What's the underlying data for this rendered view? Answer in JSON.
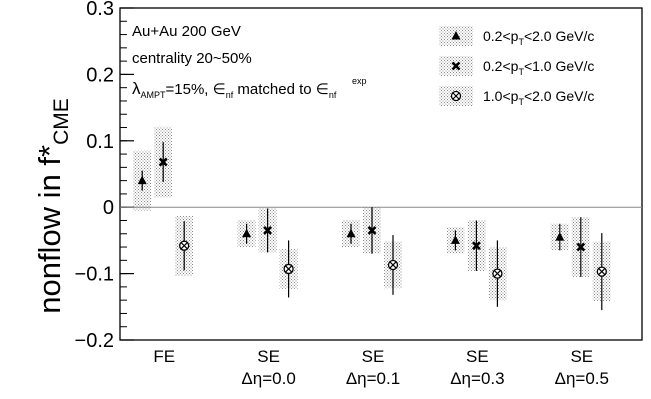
{
  "chart_data": {
    "type": "scatter",
    "ylabel_main": "nonflow in f*",
    "ylabel_sub": "CME",
    "ylim": [
      -0.2,
      0.3
    ],
    "yticks": [
      "0.3",
      "0.2",
      "0.1",
      "0",
      "−0.1",
      "−0.2"
    ],
    "ytick_values": [
      0.3,
      0.2,
      0.1,
      0,
      -0.1,
      -0.2
    ],
    "categories": [
      {
        "line1": "FE",
        "line2": ""
      },
      {
        "line1": "SE",
        "line2": "Δη=0.0"
      },
      {
        "line1": "SE",
        "line2": "Δη=0.1"
      },
      {
        "line1": "SE",
        "line2": "Δη=0.3"
      },
      {
        "line1": "SE",
        "line2": "Δη=0.5"
      }
    ],
    "annotations": {
      "line1": "Au+Au 200 GeV",
      "line2": "centrality 20~50%",
      "line3_lambda": "λ",
      "line3_lambda_sub": "AMPT",
      "line3_mid": "=15%, ∈",
      "line3_nf_sub": "nf",
      "line3_matched": " matched to ∈",
      "line3_exp_sup": "exp",
      "line3_nf_sub2": "nf"
    },
    "series": [
      {
        "name_pre": "0.2<p",
        "name_sub": "T",
        "name_post": "<2.0 GeV/c",
        "marker": "triangle",
        "values": [
          0.04,
          -0.04,
          -0.04,
          -0.05,
          -0.045
        ],
        "stat_err": [
          0.015,
          0.015,
          0.015,
          0.015,
          0.02
        ],
        "sys_err": [
          0.045,
          0.02,
          0.02,
          0.02,
          0.02
        ]
      },
      {
        "name_pre": "0.2<p",
        "name_sub": "T",
        "name_post": "<1.0 GeV/c",
        "marker": "cross",
        "values": [
          0.068,
          -0.035,
          -0.035,
          -0.058,
          -0.06
        ],
        "stat_err": [
          0.03,
          0.033,
          0.035,
          0.038,
          0.045
        ],
        "sys_err": [
          0.053,
          0.033,
          0.035,
          0.038,
          0.045
        ]
      },
      {
        "name_pre": "1.0<p",
        "name_sub": "T",
        "name_post": "<2.0 GeV/c",
        "marker": "circle-x",
        "values": [
          -0.058,
          -0.093,
          -0.087,
          -0.1,
          -0.097
        ],
        "stat_err": [
          0.037,
          0.043,
          0.045,
          0.05,
          0.058
        ],
        "sys_err": [
          0.045,
          0.03,
          0.035,
          0.04,
          0.045
        ]
      }
    ],
    "zero_line": true,
    "legend_position": "top-right"
  }
}
